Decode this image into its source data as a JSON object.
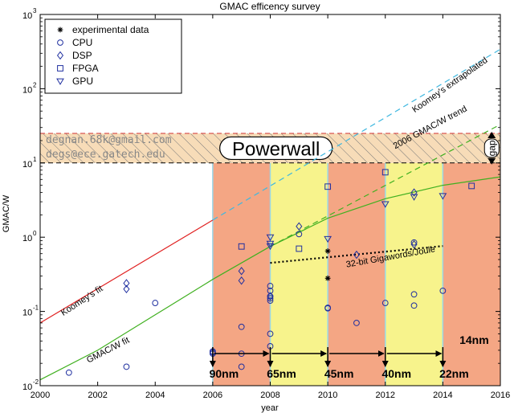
{
  "chart_data": {
    "type": "scatter",
    "title": "GMAC efficency survey",
    "xlabel": "year",
    "ylabel": "GMAC/W",
    "xlim": [
      2000,
      2016
    ],
    "ylim": [
      0.01,
      1000
    ],
    "yscale": "log",
    "x_ticks": [
      2000,
      2002,
      2004,
      2006,
      2008,
      2010,
      2012,
      2014,
      2016
    ],
    "y_ticks": [
      {
        "value": 0.01,
        "base": "10",
        "exp": "-2"
      },
      {
        "value": 0.1,
        "base": "10",
        "exp": "-1"
      },
      {
        "value": 1,
        "base": "10",
        "exp": "0"
      },
      {
        "value": 10,
        "base": "10",
        "exp": "1"
      },
      {
        "value": 100,
        "base": "10",
        "exp": "2"
      },
      {
        "value": 1000,
        "base": "10",
        "exp": "3"
      }
    ],
    "legend_position": "top-left",
    "legend": [
      {
        "label": "experimental data",
        "marker": "star"
      },
      {
        "label": "CPU",
        "marker": "circle"
      },
      {
        "label": "DSP",
        "marker": "diamond"
      },
      {
        "label": "FPGA",
        "marker": "square"
      },
      {
        "label": "GPU",
        "marker": "triangle-down"
      }
    ],
    "series": [
      {
        "marker": "circle",
        "points": [
          [
            2001,
            0.015
          ],
          [
            2003,
            0.018
          ],
          [
            2004,
            0.13
          ],
          [
            2006,
            0.028
          ],
          [
            2006,
            0.029
          ],
          [
            2006,
            0.027
          ],
          [
            2007,
            0.018
          ],
          [
            2007,
            0.027
          ],
          [
            2007,
            0.062
          ],
          [
            2008,
            0.034
          ],
          [
            2008,
            0.05
          ],
          [
            2008,
            0.14
          ],
          [
            2008,
            0.15
          ],
          [
            2008,
            0.16
          ],
          [
            2008,
            0.19
          ],
          [
            2008,
            0.22
          ],
          [
            2009,
            1.1
          ],
          [
            2010,
            0.11
          ],
          [
            2010,
            0.112
          ],
          [
            2011,
            0.07
          ],
          [
            2012,
            0.13
          ],
          [
            2013,
            0.12
          ],
          [
            2013,
            0.17
          ],
          [
            2013,
            0.85
          ],
          [
            2014,
            0.19
          ]
        ]
      },
      {
        "marker": "diamond",
        "points": [
          [
            2003,
            0.2
          ],
          [
            2003,
            0.24
          ],
          [
            2007,
            0.26
          ],
          [
            2007,
            0.35
          ],
          [
            2008,
            0.16
          ],
          [
            2009,
            1.4
          ],
          [
            2011,
            0.58
          ],
          [
            2013,
            0.8
          ],
          [
            2013,
            4.0
          ]
        ]
      },
      {
        "marker": "square",
        "points": [
          [
            2007,
            0.75
          ],
          [
            2009,
            0.7
          ],
          [
            2010,
            4.8
          ],
          [
            2012,
            7.5
          ],
          [
            2015,
            4.9
          ]
        ]
      },
      {
        "marker": "triangle-down",
        "points": [
          [
            2008,
            0.76
          ],
          [
            2008,
            0.82
          ],
          [
            2008,
            1.0
          ],
          [
            2010,
            0.95
          ],
          [
            2012,
            2.8
          ],
          [
            2013,
            3.5
          ],
          [
            2014,
            3.6
          ]
        ]
      },
      {
        "marker": "star",
        "points": [
          [
            2010,
            0.65
          ],
          [
            2010,
            0.28
          ]
        ]
      }
    ],
    "lines": [
      {
        "name": "Koomey's fit",
        "color": "#e02020",
        "dash": "solid",
        "points": [
          [
            2000,
            0.07
          ],
          [
            2006,
            1.7
          ]
        ]
      },
      {
        "name": "Koomey's extrapolated",
        "color": "#40b8e0",
        "dash": "dashed",
        "points": [
          [
            2006,
            1.7
          ],
          [
            2016,
            340
          ]
        ]
      },
      {
        "name": "GMAC/W fit",
        "color": "#40b020",
        "dash": "solid",
        "points": [
          [
            2000,
            0.012
          ],
          [
            2002,
            0.03
          ],
          [
            2004,
            0.09
          ],
          [
            2006,
            0.27
          ],
          [
            2008,
            0.75
          ],
          [
            2010,
            1.8
          ],
          [
            2012,
            3.3
          ],
          [
            2014,
            5.0
          ],
          [
            2016,
            6.5
          ]
        ]
      },
      {
        "name": "2006 GMAC/W trend",
        "color": "#40b020",
        "dash": "dashed",
        "points": [
          [
            2008,
            0.75
          ],
          [
            2016,
            33
          ]
        ]
      },
      {
        "name": "32-bit Gigawords/Joule",
        "color": "#000000",
        "dash": "dotted",
        "points": [
          [
            2008,
            0.45
          ],
          [
            2014,
            0.76
          ]
        ]
      }
    ],
    "line_labels": [
      {
        "text": "Koomey's fit",
        "color": "#000000"
      },
      {
        "text": "Koomey's extrapolated",
        "color": "#000000"
      },
      {
        "text": "GMAC/W fit",
        "color": "#000000"
      },
      {
        "text": "2006 GMAC/W trend",
        "color": "#000000"
      },
      {
        "text": "32-bit Gigawords/Joule",
        "color": "#000000"
      }
    ],
    "powerwall_band": {
      "y_low": 10,
      "y_high": 25,
      "label": "Powerwall",
      "fill": "#f7dcb8"
    },
    "gap_label": "gap",
    "contact": [
      "degnan.68k@gmail.com",
      "degs@ece.gatech.edu"
    ],
    "node_regions": [
      {
        "x0": 2006,
        "x1": 2008,
        "fill": "#f4a684"
      },
      {
        "x0": 2008,
        "x1": 2010,
        "fill": "#f7f38c"
      },
      {
        "x0": 2010,
        "x1": 2012,
        "fill": "#f4a684"
      },
      {
        "x0": 2012,
        "x1": 2014,
        "fill": "#f7f38c"
      },
      {
        "x0": 2014,
        "x1": 2016,
        "fill": "#f4a684"
      }
    ],
    "nodes": [
      {
        "label": "90nm",
        "year": 2006
      },
      {
        "label": "65nm",
        "year": 2008
      },
      {
        "label": "45nm",
        "year": 2010
      },
      {
        "label": "40nm",
        "year": 2012
      },
      {
        "label": "22nm",
        "year": 2014
      },
      {
        "label": "14nm",
        "year": 2016
      }
    ],
    "colors": {
      "marker": "#2030a0",
      "axis": "#000000",
      "band_border": "#d03030"
    }
  }
}
